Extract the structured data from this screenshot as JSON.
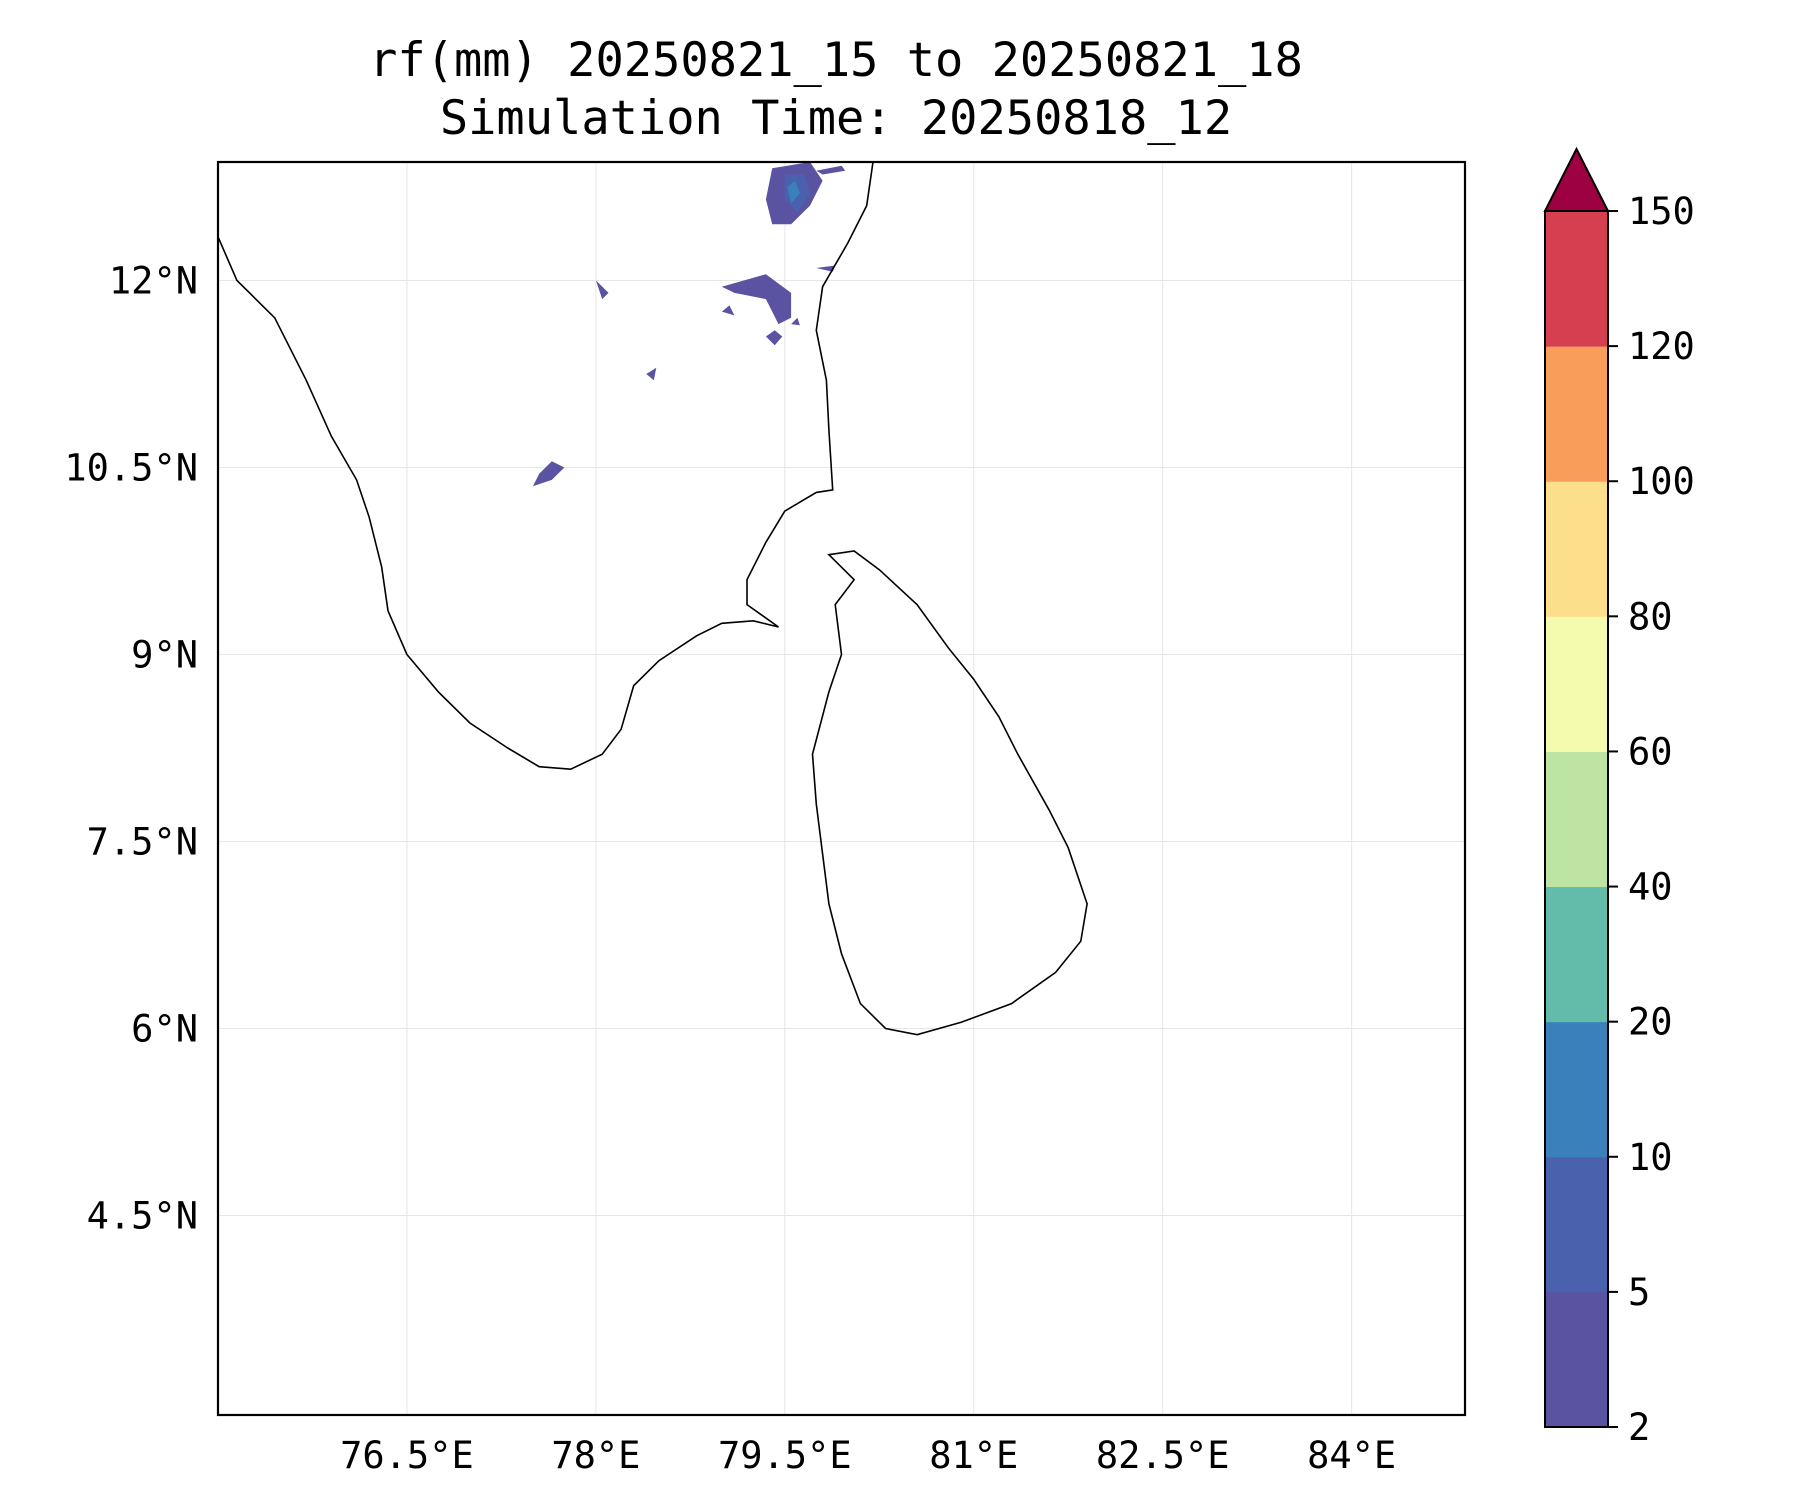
{
  "title": {
    "line1": "rf(mm) 20250821_15 to 20250821_18",
    "line2": "Simulation Time: 20250818_12"
  },
  "map": {
    "lon_range": [
      75.0,
      84.9
    ],
    "lat_range": [
      2.9,
      12.95
    ],
    "x_ticks": [
      {
        "value": 76.5,
        "label": "76.5°E"
      },
      {
        "value": 78.0,
        "label": "78°E"
      },
      {
        "value": 79.5,
        "label": "79.5°E"
      },
      {
        "value": 81.0,
        "label": "81°E"
      },
      {
        "value": 82.5,
        "label": "82.5°E"
      },
      {
        "value": 84.0,
        "label": "84°E"
      }
    ],
    "y_ticks": [
      {
        "value": 12.0,
        "label": "12°N"
      },
      {
        "value": 10.5,
        "label": "10.5°N"
      },
      {
        "value": 9.0,
        "label": "9°N"
      },
      {
        "value": 7.5,
        "label": "7.5°N"
      },
      {
        "value": 6.0,
        "label": "6°N"
      },
      {
        "value": 4.5,
        "label": "4.5°N"
      }
    ],
    "grid": true,
    "coastline_india": [
      [
        75.0,
        12.35
      ],
      [
        75.15,
        12.0
      ],
      [
        75.45,
        11.7
      ],
      [
        75.7,
        11.2
      ],
      [
        75.9,
        10.75
      ],
      [
        76.1,
        10.4
      ],
      [
        76.2,
        10.1
      ],
      [
        76.3,
        9.7
      ],
      [
        76.35,
        9.35
      ],
      [
        76.5,
        9.0
      ],
      [
        76.75,
        8.7
      ],
      [
        77.0,
        8.45
      ],
      [
        77.3,
        8.25
      ],
      [
        77.55,
        8.1
      ],
      [
        77.8,
        8.08
      ],
      [
        78.05,
        8.2
      ],
      [
        78.2,
        8.4
      ],
      [
        78.3,
        8.75
      ],
      [
        78.5,
        8.95
      ],
      [
        78.8,
        9.15
      ],
      [
        79.0,
        9.25
      ],
      [
        79.25,
        9.27
      ],
      [
        79.45,
        9.22
      ],
      [
        79.2,
        9.4
      ],
      [
        79.2,
        9.6
      ],
      [
        79.35,
        9.9
      ],
      [
        79.5,
        10.15
      ],
      [
        79.75,
        10.3
      ],
      [
        79.88,
        10.32
      ],
      [
        79.85,
        10.8
      ],
      [
        79.83,
        11.2
      ],
      [
        79.75,
        11.6
      ],
      [
        79.8,
        11.95
      ],
      [
        80.0,
        12.3
      ],
      [
        80.15,
        12.6
      ],
      [
        80.2,
        12.95
      ]
    ],
    "coastline_srilanka": [
      [
        79.85,
        9.8
      ],
      [
        80.05,
        9.83
      ],
      [
        80.25,
        9.68
      ],
      [
        80.55,
        9.4
      ],
      [
        80.8,
        9.05
      ],
      [
        81.0,
        8.8
      ],
      [
        81.2,
        8.5
      ],
      [
        81.35,
        8.2
      ],
      [
        81.6,
        7.75
      ],
      [
        81.75,
        7.45
      ],
      [
        81.9,
        7.0
      ],
      [
        81.85,
        6.7
      ],
      [
        81.65,
        6.45
      ],
      [
        81.3,
        6.2
      ],
      [
        80.9,
        6.05
      ],
      [
        80.55,
        5.95
      ],
      [
        80.3,
        6.0
      ],
      [
        80.1,
        6.2
      ],
      [
        79.95,
        6.6
      ],
      [
        79.85,
        7.0
      ],
      [
        79.8,
        7.4
      ],
      [
        79.75,
        7.8
      ],
      [
        79.72,
        8.2
      ],
      [
        79.85,
        8.7
      ],
      [
        79.95,
        9.0
      ],
      [
        79.9,
        9.4
      ],
      [
        80.05,
        9.6
      ],
      [
        79.85,
        9.8
      ]
    ],
    "rain_patches": [
      {
        "level": 1,
        "points": [
          [
            79.4,
            12.9
          ],
          [
            79.7,
            12.95
          ],
          [
            79.8,
            12.8
          ],
          [
            79.7,
            12.6
          ],
          [
            79.55,
            12.45
          ],
          [
            79.4,
            12.45
          ],
          [
            79.35,
            12.65
          ]
        ]
      },
      {
        "level": 2,
        "points": [
          [
            79.5,
            12.85
          ],
          [
            79.65,
            12.85
          ],
          [
            79.7,
            12.7
          ],
          [
            79.6,
            12.55
          ],
          [
            79.5,
            12.65
          ]
        ]
      },
      {
        "level": 3,
        "points": [
          [
            79.52,
            12.75
          ],
          [
            79.58,
            12.8
          ],
          [
            79.62,
            12.7
          ],
          [
            79.55,
            12.62
          ]
        ]
      },
      {
        "level": 1,
        "points": [
          [
            79.75,
            12.88
          ],
          [
            79.95,
            12.92
          ],
          [
            79.98,
            12.88
          ],
          [
            79.8,
            12.85
          ]
        ]
      },
      {
        "level": 1,
        "points": [
          [
            79.0,
            11.95
          ],
          [
            79.35,
            12.05
          ],
          [
            79.55,
            11.9
          ],
          [
            79.55,
            11.7
          ],
          [
            79.45,
            11.65
          ],
          [
            79.35,
            11.85
          ],
          [
            79.1,
            11.9
          ]
        ]
      },
      {
        "level": 1,
        "points": [
          [
            78.0,
            12.0
          ],
          [
            78.1,
            11.9
          ],
          [
            78.05,
            11.85
          ]
        ]
      },
      {
        "level": 1,
        "points": [
          [
            77.5,
            10.35
          ],
          [
            77.65,
            10.4
          ],
          [
            77.75,
            10.5
          ],
          [
            77.65,
            10.55
          ],
          [
            77.55,
            10.45
          ]
        ]
      },
      {
        "level": 1,
        "points": [
          [
            79.35,
            11.55
          ],
          [
            79.42,
            11.6
          ],
          [
            79.48,
            11.55
          ],
          [
            79.42,
            11.48
          ]
        ]
      },
      {
        "level": 1,
        "points": [
          [
            79.0,
            11.75
          ],
          [
            79.06,
            11.8
          ],
          [
            79.1,
            11.72
          ]
        ]
      },
      {
        "level": 1,
        "points": [
          [
            79.55,
            11.65
          ],
          [
            79.6,
            11.7
          ],
          [
            79.62,
            11.64
          ]
        ]
      },
      {
        "level": 1,
        "points": [
          [
            79.75,
            12.1
          ],
          [
            79.9,
            12.12
          ],
          [
            79.88,
            12.07
          ]
        ]
      },
      {
        "level": 1,
        "points": [
          [
            78.4,
            11.25
          ],
          [
            78.48,
            11.3
          ],
          [
            78.46,
            11.2
          ]
        ]
      }
    ]
  },
  "colorbar": {
    "levels": [
      "2",
      "5",
      "10",
      "20",
      "40",
      "60",
      "80",
      "100",
      "120",
      "150"
    ],
    "colors": [
      "#5a53a2",
      "#4a62ad",
      "#3a80bb",
      "#63bcaa",
      "#bde4a3",
      "#f4fbae",
      "#fddf8b",
      "#f99d5a",
      "#d53f50"
    ],
    "extend_color": "#9e0142"
  }
}
